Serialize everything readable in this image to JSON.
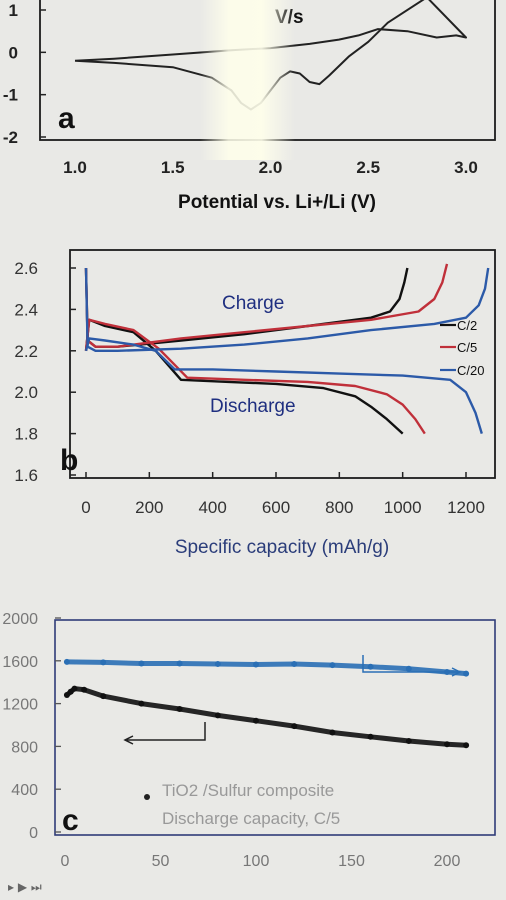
{
  "chart_data": [
    {
      "panel": "a",
      "type": "line",
      "annotation": "V/s",
      "xlabel": "Potential vs. Li+/Li (V)",
      "xlim": [
        1.0,
        3.0
      ],
      "ylim": [
        -2,
        1.2
      ],
      "xticks": [
        "1.0",
        "1.5",
        "2.0",
        "2.5",
        "3.0"
      ],
      "yticks": [
        "1",
        "0",
        "-1",
        "-2"
      ],
      "series": [
        {
          "x": [
            1.0,
            1.2,
            1.5,
            1.7,
            1.8,
            1.85,
            1.9,
            1.95,
            2.0,
            2.05,
            2.1,
            2.15,
            2.2,
            2.25,
            2.3,
            2.4,
            2.5,
            2.6,
            2.8,
            3.0,
            2.95,
            2.85,
            2.7,
            2.55,
            2.45,
            2.35,
            2.2,
            2.0,
            1.8,
            1.5,
            1.2,
            1.0
          ],
          "y": [
            -0.2,
            -0.25,
            -0.35,
            -0.6,
            -0.9,
            -1.2,
            -1.35,
            -1.2,
            -0.9,
            -0.6,
            -0.45,
            -0.5,
            -0.7,
            -0.75,
            -0.55,
            -0.1,
            0.25,
            0.7,
            1.3,
            0.35,
            0.4,
            0.35,
            0.5,
            0.55,
            0.4,
            0.3,
            0.2,
            0.1,
            0.05,
            -0.05,
            -0.15,
            -0.2
          ],
          "color": "#222222"
        }
      ]
    },
    {
      "panel": "b",
      "type": "line",
      "xlabel": "Specific capacity (mAh/g)",
      "xlim": [
        -30,
        1330
      ],
      "ylim": [
        1.6,
        2.65
      ],
      "xticks": [
        "0",
        "200",
        "400",
        "600",
        "800",
        "1000",
        "1200"
      ],
      "yticks": [
        "2.6",
        "2.4",
        "2.2",
        "2.0",
        "1.8",
        "1.6"
      ],
      "annotations": [
        "Charge",
        "Discharge"
      ],
      "series": [
        {
          "name": "C/2",
          "color": "#111111",
          "discharge": {
            "x": [
              0,
              10,
              60,
              150,
              220,
              300,
              450,
              600,
              750,
              850,
              900,
              950,
              1000
            ],
            "y": [
              2.2,
              2.35,
              2.32,
              2.29,
              2.2,
              2.06,
              2.05,
              2.04,
              2.02,
              1.98,
              1.93,
              1.87,
              1.8
            ]
          },
          "charge": {
            "x": [
              0,
              5,
              30,
              100,
              300,
              500,
              700,
              900,
              960,
              990,
              1005,
              1015
            ],
            "y": [
              2.6,
              2.25,
              2.22,
              2.22,
              2.25,
              2.28,
              2.32,
              2.36,
              2.39,
              2.45,
              2.53,
              2.6
            ]
          }
        },
        {
          "name": "C/5",
          "color": "#c0303a",
          "discharge": {
            "x": [
              0,
              10,
              60,
              150,
              230,
              320,
              500,
              700,
              850,
              950,
              1000,
              1040,
              1070
            ],
            "y": [
              2.2,
              2.35,
              2.33,
              2.3,
              2.21,
              2.07,
              2.06,
              2.05,
              2.03,
              1.99,
              1.94,
              1.87,
              1.8
            ]
          },
          "charge": {
            "x": [
              0,
              5,
              30,
              100,
              300,
              500,
              700,
              900,
              1050,
              1100,
              1125,
              1140
            ],
            "y": [
              2.6,
              2.25,
              2.22,
              2.22,
              2.26,
              2.29,
              2.32,
              2.35,
              2.39,
              2.45,
              2.53,
              2.62
            ]
          }
        },
        {
          "name": "C/20",
          "color": "#2c5aa8",
          "discharge": {
            "x": [
              0,
              10,
              60,
              150,
              220,
              280,
              400,
              600,
              800,
              1000,
              1150,
              1200,
              1230,
              1250
            ],
            "y": [
              2.2,
              2.26,
              2.25,
              2.23,
              2.2,
              2.11,
              2.11,
              2.1,
              2.09,
              2.08,
              2.06,
              2.0,
              1.9,
              1.8
            ]
          },
          "charge": {
            "x": [
              0,
              5,
              30,
              100,
              300,
              500,
              700,
              900,
              1100,
              1200,
              1240,
              1260,
              1270
            ],
            "y": [
              2.6,
              2.22,
              2.2,
              2.2,
              2.21,
              2.23,
              2.26,
              2.3,
              2.33,
              2.36,
              2.42,
              2.5,
              2.6
            ]
          }
        }
      ]
    },
    {
      "panel": "c",
      "type": "scatter",
      "xlim": [
        -2,
        215
      ],
      "ylim": [
        0,
        2000
      ],
      "xticks": [
        "0",
        "50",
        "100",
        "150",
        "200"
      ],
      "yticks": [
        "2000",
        "1600",
        "1200",
        "800",
        "400",
        "0"
      ],
      "annotations": [
        "TiO2 /Sulfur composite",
        "Discharge capacity, C/5"
      ],
      "series": [
        {
          "color": "#2a6fb5",
          "x": [
            1,
            20,
            40,
            60,
            80,
            100,
            120,
            140,
            160,
            180,
            200,
            210
          ],
          "y": [
            1590,
            1585,
            1575,
            1575,
            1570,
            1565,
            1570,
            1560,
            1545,
            1525,
            1495,
            1480
          ]
        },
        {
          "color": "#111111",
          "x": [
            1,
            3,
            5,
            10,
            20,
            40,
            60,
            80,
            100,
            120,
            140,
            160,
            180,
            200,
            210
          ],
          "y": [
            1280,
            1310,
            1340,
            1330,
            1270,
            1200,
            1150,
            1090,
            1040,
            990,
            930,
            890,
            850,
            820,
            810
          ]
        }
      ]
    }
  ],
  "toolbar": {
    "glyphs": "▸ ▶ ⏭"
  }
}
